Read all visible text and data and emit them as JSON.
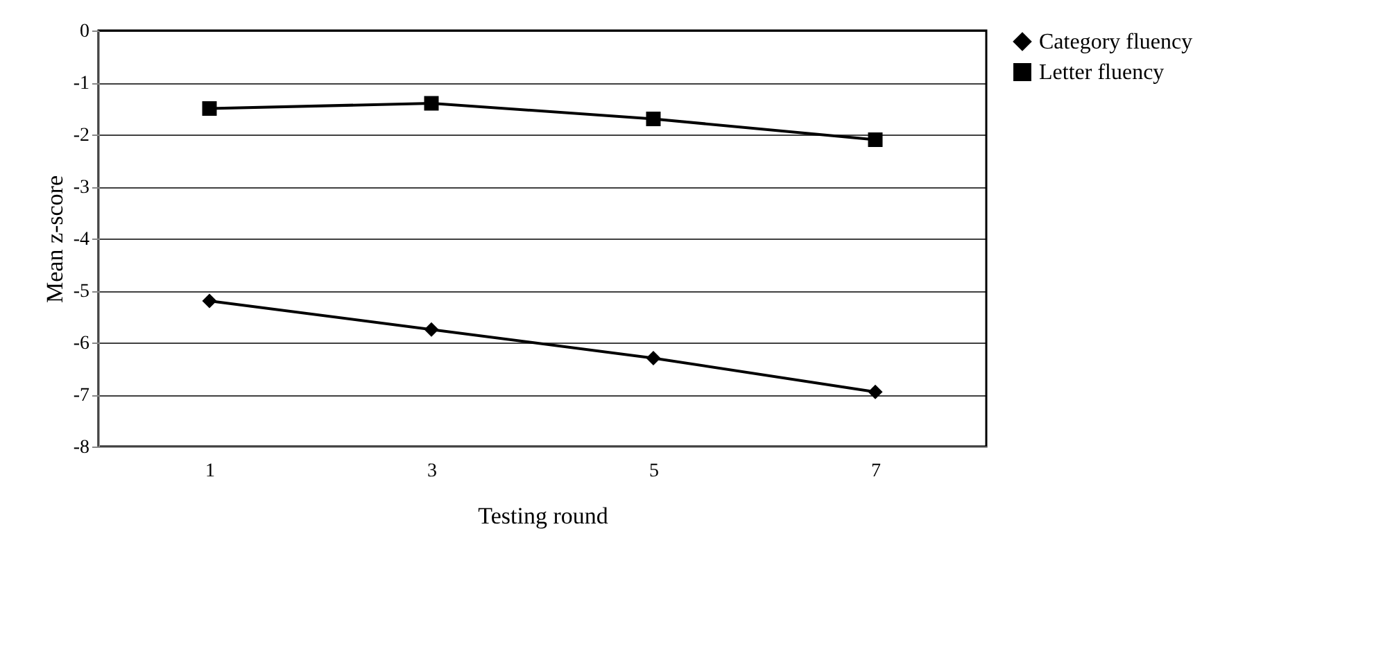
{
  "chart_data": {
    "type": "line",
    "xlabel": "Testing round",
    "ylabel": "Mean z-score",
    "categories": [
      "1",
      "3",
      "5",
      "7"
    ],
    "series": [
      {
        "name": "Category fluency",
        "color": "#000000",
        "marker": "diamond",
        "values": [
          -5.2,
          -5.75,
          -6.3,
          -6.95
        ]
      },
      {
        "name": "Letter fluency",
        "color": "#000000",
        "marker": "square",
        "values": [
          -1.5,
          -1.4,
          -1.7,
          -2.1
        ]
      }
    ],
    "ylim": [
      -8,
      0
    ],
    "yticks": [
      -8,
      -7,
      -6,
      -5,
      -4,
      -3,
      -2,
      -1,
      0
    ],
    "grid": "y",
    "legend": "right"
  }
}
